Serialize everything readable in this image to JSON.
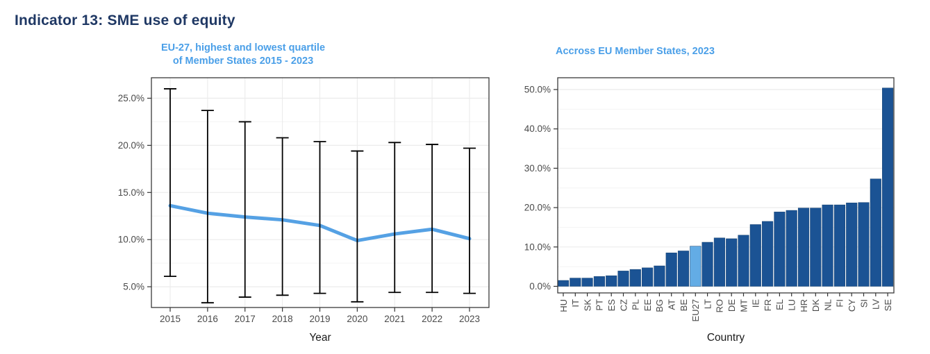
{
  "page": {
    "heading": "Indicator 13: SME use of equity"
  },
  "colors": {
    "heading_navy": "#1F3864",
    "title_blue": "#4A9FE8",
    "median_line_blue": "#55A1E4",
    "bar_dark_blue": "#1B5394",
    "bar_highlight_blue": "#63ACE5",
    "error_bar_black": "#000000",
    "grid_major": "#ebebeb",
    "grid_minor": "#f4f4f4",
    "panel_border": "#3a3a3a",
    "tick_mark": "#333333",
    "tick_label": "#4a4a4a",
    "axis_title": "#1a1a1a"
  },
  "chart_data": [
    {
      "type": "line",
      "title_line1": "EU-27, highest and lowest quartile",
      "title_line2": "of Member States 2015 - 2023",
      "xlabel": "Year",
      "categories": [
        "2015",
        "2016",
        "2017",
        "2018",
        "2019",
        "2020",
        "2021",
        "2022",
        "2023"
      ],
      "series": [
        {
          "name": "eu27-median",
          "values": [
            13.6,
            12.8,
            12.4,
            12.1,
            11.5,
            9.9,
            10.6,
            11.1,
            10.1
          ]
        },
        {
          "name": "highest-quartile",
          "values": [
            26.0,
            23.7,
            22.5,
            20.8,
            20.4,
            19.4,
            20.3,
            20.1,
            19.7
          ]
        },
        {
          "name": "lowest-quartile",
          "values": [
            6.1,
            3.3,
            3.9,
            4.1,
            4.3,
            3.4,
            4.4,
            4.4,
            4.3
          ]
        }
      ],
      "ylim": [
        2.8,
        27.2
      ],
      "ytick_values": [
        5,
        10,
        15,
        20,
        25
      ],
      "ytick_labels": [
        "5.0%",
        "10.0%",
        "15.0%",
        "20.0%",
        "25.0%"
      ],
      "ytick_minor_values": [
        7.5,
        12.5,
        17.5,
        22.5
      ],
      "grid": true,
      "legend": "none"
    },
    {
      "type": "bar",
      "title": "Accross EU Member States, 2023",
      "xlabel": "Country",
      "categories": [
        "HU",
        "IT",
        "SK",
        "PT",
        "ES",
        "CZ",
        "PL",
        "EE",
        "BG",
        "AT",
        "BE",
        "EU27",
        "LT",
        "RO",
        "DE",
        "MT",
        "IE",
        "FR",
        "EL",
        "LU",
        "HR",
        "DK",
        "NL",
        "FI",
        "CY",
        "SI",
        "LV",
        "SE"
      ],
      "values": [
        1.5,
        2.1,
        2.1,
        2.5,
        2.7,
        3.9,
        4.3,
        4.7,
        5.2,
        8.5,
        9.0,
        10.2,
        11.2,
        12.3,
        12.1,
        13.0,
        15.7,
        16.5,
        18.9,
        19.3,
        19.9,
        19.9,
        20.7,
        20.7,
        21.2,
        21.3,
        27.3,
        50.4
      ],
      "highlight_category": "EU27",
      "ylim": [
        0,
        52.8
      ],
      "ytick_values": [
        0,
        10,
        20,
        30,
        40,
        50
      ],
      "ytick_labels": [
        "0.0%",
        "10.0%",
        "20.0%",
        "30.0%",
        "40.0%",
        "50.0%"
      ],
      "ytick_minor_values": [
        5,
        15,
        25,
        35,
        45
      ],
      "grid": true,
      "legend": "none"
    }
  ]
}
